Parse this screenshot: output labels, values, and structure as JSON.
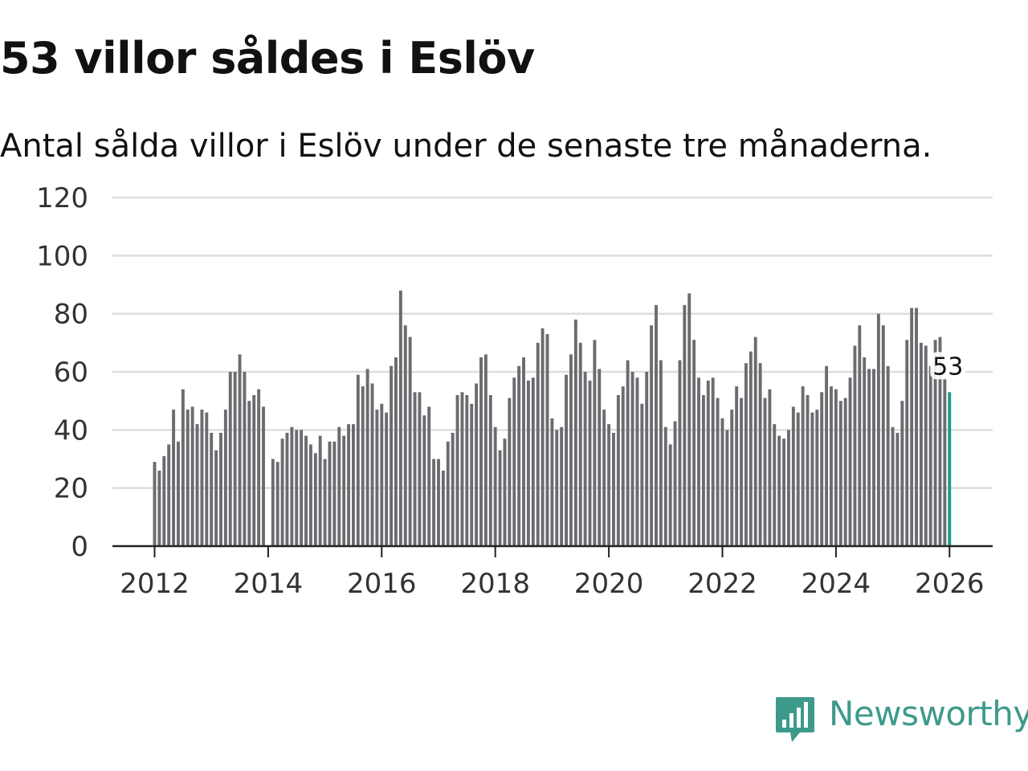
{
  "title": "53 villor såldes i Eslöv",
  "subtitle": "Antal sålda villor i Eslöv under de senaste tre månaderna.",
  "brand": {
    "name": "Newsworthy",
    "color": "#3d9a8b",
    "icon": "newsworthy-logo-icon"
  },
  "colors": {
    "bar": "#6b6b70",
    "highlight": "#1a9a8a",
    "grid": "#dddddd",
    "axis": "#222222",
    "text": "#333333"
  },
  "chart_data": {
    "type": "bar",
    "title": "53 villor såldes i Eslöv",
    "xlabel": "",
    "ylabel": "",
    "ylim": [
      0,
      120
    ],
    "yticks": [
      0,
      20,
      40,
      60,
      80,
      100,
      120
    ],
    "xticks": [
      2012,
      2014,
      2016,
      2018,
      2020,
      2022,
      2024,
      2026
    ],
    "xlim": [
      2011.25,
      2026.75
    ],
    "start": 2012.0,
    "step": 0.08333,
    "grid": true,
    "highlight_label": "53",
    "values": [
      29,
      26,
      31,
      35,
      47,
      36,
      54,
      47,
      48,
      42,
      47,
      46,
      39,
      33,
      39,
      47,
      60,
      60,
      66,
      60,
      50,
      52,
      54,
      48,
      null,
      30,
      29,
      37,
      39,
      41,
      40,
      40,
      38,
      35,
      32,
      38,
      30,
      36,
      36,
      41,
      38,
      42,
      42,
      59,
      55,
      61,
      56,
      47,
      49,
      46,
      62,
      65,
      88,
      76,
      72,
      53,
      53,
      45,
      48,
      30,
      30,
      26,
      36,
      39,
      52,
      53,
      52,
      49,
      56,
      65,
      66,
      52,
      41,
      33,
      37,
      51,
      58,
      62,
      65,
      57,
      58,
      70,
      75,
      73,
      44,
      40,
      41,
      59,
      66,
      78,
      70,
      60,
      57,
      71,
      61,
      47,
      42,
      39,
      52,
      55,
      64,
      60,
      58,
      49,
      60,
      76,
      83,
      64,
      41,
      35,
      43,
      64,
      83,
      87,
      71,
      58,
      52,
      57,
      58,
      51,
      44,
      40,
      47,
      55,
      51,
      63,
      67,
      72,
      63,
      51,
      54,
      42,
      38,
      37,
      40,
      48,
      46,
      55,
      52,
      46,
      47,
      53,
      62,
      55,
      54,
      50,
      51,
      58,
      69,
      76,
      65,
      61,
      61,
      80,
      76,
      62,
      41,
      39,
      50,
      71,
      82,
      82,
      70,
      69,
      62,
      71,
      72,
      58,
      53
    ]
  }
}
